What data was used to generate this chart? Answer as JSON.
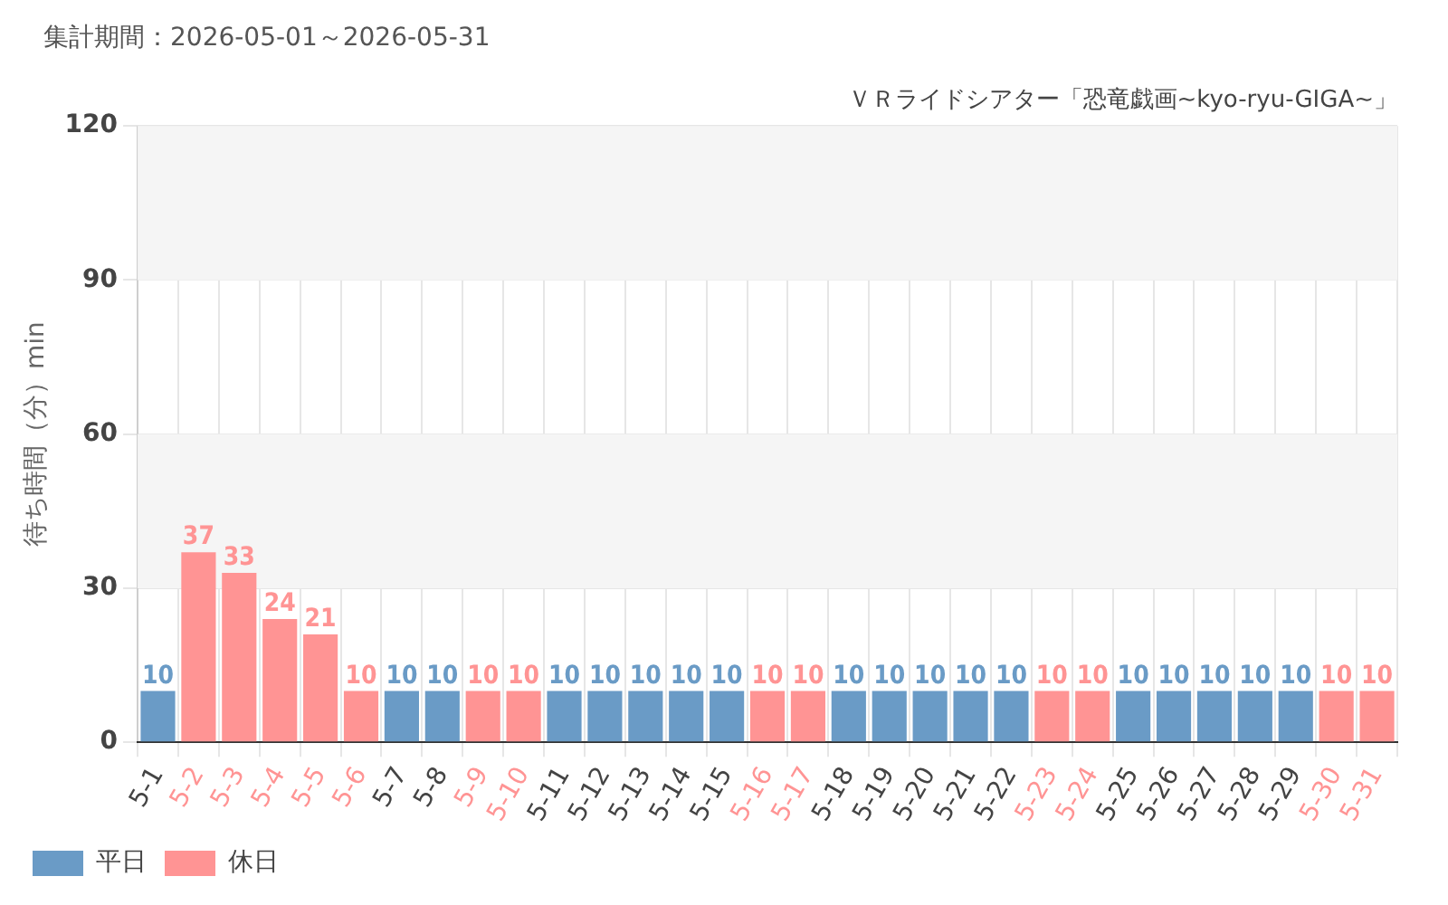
{
  "chart_data": {
    "type": "bar",
    "subtitle": "集計期間：2026-05-01～2026-05-31",
    "title": "ＶＲライドシアター「恐竜戯画~kyo-ryu-GIGA~」",
    "ylabel": "待ち時間（分）min",
    "categories": [
      "5-1",
      "5-2",
      "5-3",
      "5-4",
      "5-5",
      "5-6",
      "5-7",
      "5-8",
      "5-9",
      "5-10",
      "5-11",
      "5-12",
      "5-13",
      "5-14",
      "5-15",
      "5-16",
      "5-17",
      "5-18",
      "5-19",
      "5-20",
      "5-21",
      "5-22",
      "5-23",
      "5-24",
      "5-25",
      "5-26",
      "5-27",
      "5-28",
      "5-29",
      "5-30",
      "5-31"
    ],
    "series": [
      {
        "name": "平日",
        "color": "#6a9bc6",
        "values": [
          10,
          null,
          null,
          null,
          null,
          null,
          10,
          10,
          null,
          null,
          10,
          10,
          10,
          10,
          10,
          null,
          null,
          10,
          10,
          10,
          10,
          10,
          null,
          null,
          10,
          10,
          10,
          10,
          10,
          null,
          null
        ]
      },
      {
        "name": "休日",
        "color": "#ff9494",
        "values": [
          null,
          37,
          33,
          24,
          21,
          10,
          null,
          null,
          10,
          10,
          null,
          null,
          null,
          null,
          null,
          10,
          10,
          null,
          null,
          null,
          null,
          null,
          10,
          10,
          null,
          null,
          null,
          null,
          null,
          10,
          10
        ]
      }
    ],
    "ylim": [
      0,
      120
    ],
    "yticks": [
      0,
      30,
      60,
      90,
      120
    ],
    "grid": true,
    "legend": "bottom left",
    "data_labels": true
  }
}
